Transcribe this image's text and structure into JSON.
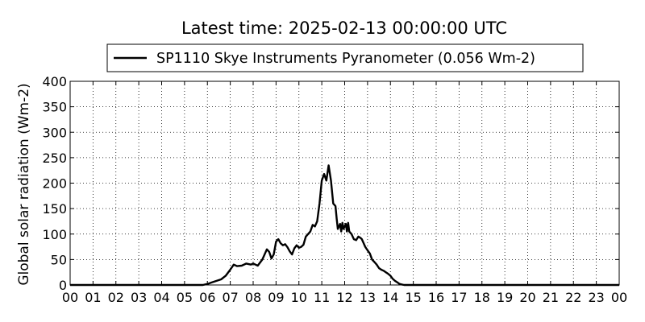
{
  "chart_data": {
    "type": "line",
    "title": "Latest time: 2025-02-13 00:00:00 UTC",
    "xlabel": "",
    "ylabel": "Global solar radiation (Wm-2)",
    "xlim": [
      0,
      24
    ],
    "ylim": [
      0,
      400
    ],
    "xticks": [
      0,
      1,
      2,
      3,
      4,
      5,
      6,
      7,
      8,
      9,
      10,
      11,
      12,
      13,
      14,
      15,
      16,
      17,
      18,
      19,
      20,
      21,
      22,
      23,
      24
    ],
    "xtick_labels": [
      "00",
      "01",
      "02",
      "03",
      "04",
      "05",
      "06",
      "07",
      "08",
      "09",
      "10",
      "11",
      "12",
      "13",
      "14",
      "15",
      "16",
      "17",
      "18",
      "19",
      "20",
      "21",
      "22",
      "23",
      "00"
    ],
    "yticks": [
      0,
      50,
      100,
      150,
      200,
      250,
      300,
      350,
      400
    ],
    "ytick_labels": [
      "0",
      "50",
      "100",
      "150",
      "200",
      "250",
      "300",
      "350",
      "400"
    ],
    "grid": true,
    "legend_position": "top",
    "series": [
      {
        "name": "SP1110 Skye Instruments Pyranometer (0.056 Wm-2)",
        "color": "#000000",
        "x": [
          0,
          5.8,
          6.0,
          6.2,
          6.4,
          6.6,
          6.8,
          7.0,
          7.15,
          7.3,
          7.5,
          7.7,
          7.9,
          8.0,
          8.1,
          8.2,
          8.4,
          8.6,
          8.7,
          8.8,
          8.9,
          9.0,
          9.1,
          9.2,
          9.3,
          9.4,
          9.5,
          9.6,
          9.7,
          9.8,
          9.9,
          10.0,
          10.1,
          10.2,
          10.3,
          10.4,
          10.5,
          10.6,
          10.7,
          10.8,
          10.9,
          11.0,
          11.1,
          11.2,
          11.3,
          11.4,
          11.5,
          11.6,
          11.65,
          11.7,
          11.75,
          11.8,
          11.85,
          11.9,
          11.95,
          12.0,
          12.05,
          12.1,
          12.15,
          12.2,
          12.3,
          12.4,
          12.5,
          12.6,
          12.7,
          12.75,
          12.8,
          12.9,
          13.0,
          13.1,
          13.2,
          13.3,
          13.4,
          13.5,
          13.6,
          13.7,
          13.8,
          13.9,
          14.0,
          14.1,
          14.2,
          14.3,
          14.4,
          14.5,
          14.6,
          14.7,
          14.8,
          14.9,
          15.0,
          15.2,
          15.4,
          15.6,
          15.8,
          16.0,
          16.2,
          16.4,
          17.0,
          24.0
        ],
        "y": [
          0,
          0,
          2,
          5,
          8,
          11,
          18,
          30,
          40,
          37,
          38,
          42,
          40,
          42,
          40,
          38,
          50,
          70,
          65,
          52,
          60,
          85,
          90,
          82,
          78,
          80,
          74,
          66,
          60,
          72,
          78,
          73,
          75,
          79,
          95,
          100,
          105,
          118,
          115,
          125,
          160,
          205,
          218,
          205,
          235,
          205,
          160,
          155,
          130,
          110,
          115,
          120,
          105,
          122,
          110,
          115,
          120,
          105,
          122,
          105,
          100,
          90,
          88,
          95,
          92,
          90,
          85,
          75,
          68,
          62,
          50,
          45,
          40,
          33,
          30,
          28,
          25,
          22,
          18,
          12,
          8,
          5,
          2,
          1,
          0,
          0,
          0,
          0,
          0,
          0,
          0,
          0,
          0,
          0,
          0,
          0,
          0,
          0
        ]
      }
    ]
  }
}
